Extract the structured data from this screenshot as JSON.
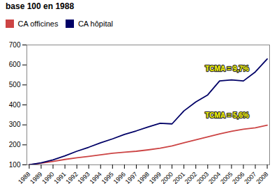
{
  "chart_data": {
    "type": "line",
    "title": "base 100 en 1988",
    "x": [
      1988,
      1989,
      1990,
      1991,
      1992,
      1993,
      1994,
      1995,
      1996,
      1997,
      1998,
      1999,
      2000,
      2001,
      2002,
      2003,
      2004,
      2005,
      2006,
      2007,
      2008
    ],
    "series": [
      {
        "name": "CA officines",
        "color": "#cc4444",
        "values": [
          100,
          108,
          117,
          127,
          135,
          142,
          150,
          158,
          163,
          168,
          175,
          183,
          195,
          210,
          225,
          240,
          255,
          268,
          278,
          285,
          298
        ]
      },
      {
        "name": "CA hôpital",
        "color": "#000066",
        "values": [
          100,
          110,
          125,
          145,
          168,
          188,
          210,
          230,
          252,
          270,
          290,
          308,
          305,
          370,
          415,
          450,
          520,
          525,
          520,
          565,
          630
        ]
      }
    ],
    "xlim": [
      1987.8,
      2008.2
    ],
    "xticks": [
      1988,
      1989,
      1990,
      1991,
      1992,
      1993,
      1994,
      1995,
      1996,
      1997,
      1998,
      1999,
      2000,
      2001,
      2002,
      2003,
      2004,
      2005,
      2006,
      2007,
      2008
    ],
    "ylim": [
      100,
      700
    ],
    "yticks": [
      100,
      200,
      300,
      400,
      500,
      600,
      700
    ],
    "grid": false,
    "legend": "upper left",
    "annotations": [
      {
        "text": "TCMA = 9,7%",
        "color": "#ffff00"
      },
      {
        "text": "TCMA = 5,6%",
        "color": "#ffff00"
      }
    ]
  }
}
